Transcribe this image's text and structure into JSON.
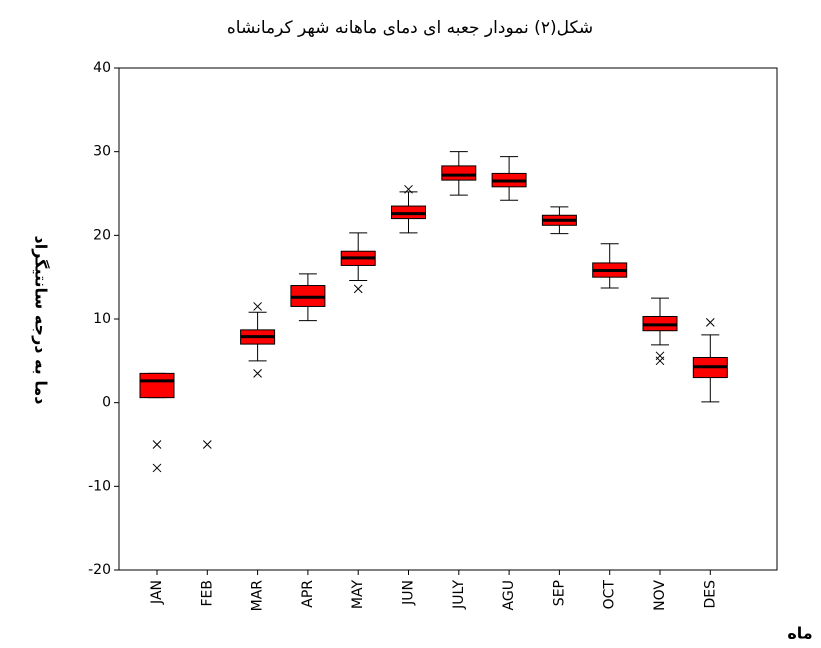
{
  "chart_data": {
    "type": "box",
    "title": "شکل(۲) نمودار جعبه ای دمای ماهانه شهر کرمانشاه",
    "x_label": "ماه",
    "y_label": "دما به درجه سانتیگراد",
    "categories": [
      "JAN",
      "FEB",
      "MAR",
      "APR",
      "MAY",
      "JUN",
      "JULY",
      "AGU",
      "SEP",
      "OCT",
      "NOV",
      "DES"
    ],
    "min": [
      0.6,
      null,
      5.0,
      9.8,
      14.6,
      20.3,
      24.8,
      24.2,
      20.2,
      13.7,
      6.9,
      0.1
    ],
    "q1": [
      0.6,
      null,
      7.0,
      11.5,
      16.4,
      22.0,
      26.6,
      25.8,
      21.2,
      15.0,
      8.6,
      3.0
    ],
    "median": [
      2.6,
      null,
      7.9,
      12.6,
      17.3,
      22.6,
      27.2,
      26.5,
      21.8,
      15.8,
      9.3,
      4.3
    ],
    "q3": [
      3.5,
      null,
      8.7,
      14.0,
      18.1,
      23.5,
      28.3,
      27.4,
      22.4,
      16.7,
      10.3,
      5.4
    ],
    "max": [
      3.5,
      null,
      10.8,
      15.4,
      20.3,
      25.2,
      30.0,
      29.4,
      23.4,
      19.0,
      12.5,
      8.1
    ],
    "outliers": [
      [
        -5.0,
        -7.8
      ],
      [
        -5.0
      ],
      [
        11.5,
        3.5
      ],
      [],
      [
        13.6
      ],
      [
        25.5
      ],
      [],
      [],
      [],
      [],
      [
        5.6,
        5.0
      ],
      [
        9.6
      ]
    ],
    "color": "#ff0000",
    "ylim": [
      -20,
      40
    ],
    "yticks": [
      -20,
      -10,
      0,
      10,
      20,
      30,
      40
    ]
  }
}
